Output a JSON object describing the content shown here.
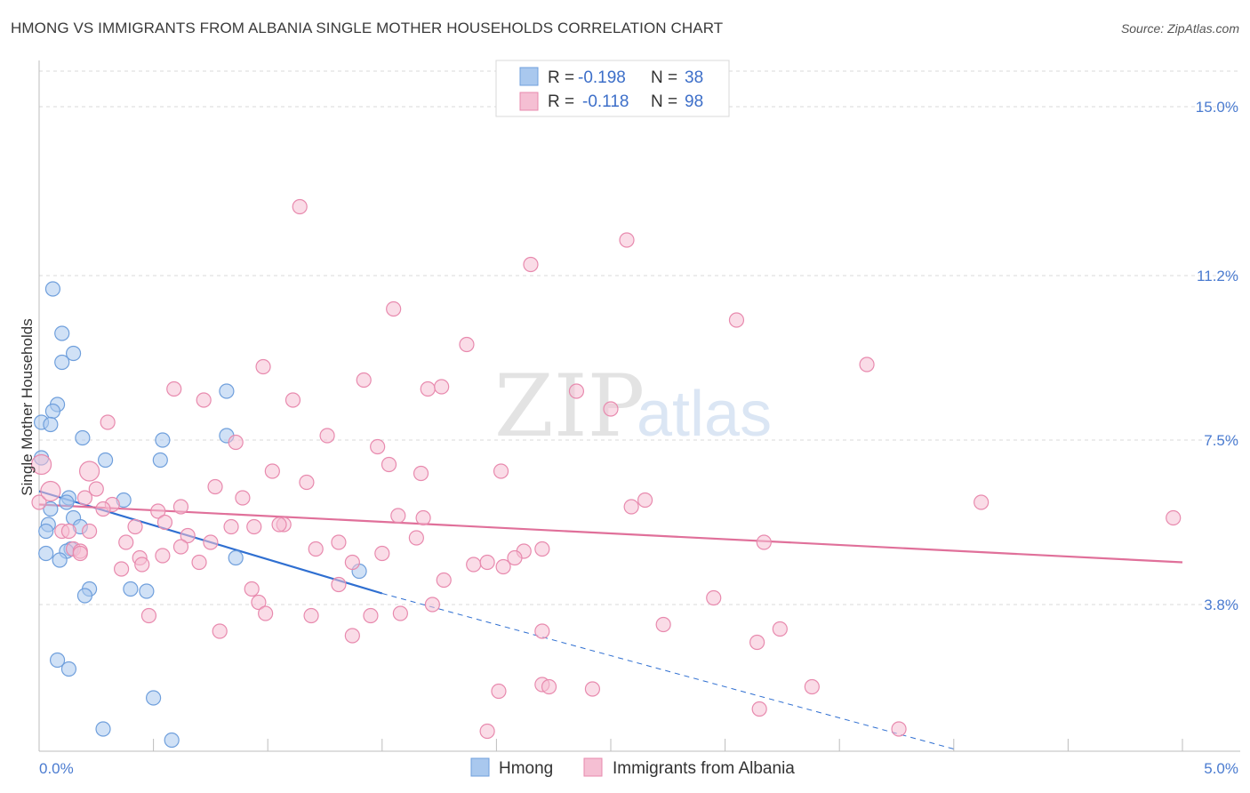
{
  "title": "HMONG VS IMMIGRANTS FROM ALBANIA SINGLE MOTHER HOUSEHOLDS CORRELATION CHART",
  "source": "Source: ZipAtlas.com",
  "watermark": {
    "part1": "ZIP",
    "part2": "atlas"
  },
  "legend": {
    "rows": [
      {
        "r_label": "R =",
        "r_value": "-0.198",
        "n_label": "N =",
        "n_value": "38"
      },
      {
        "r_label": "R =",
        "r_value": "-0.118",
        "n_label": "N =",
        "n_value": "98"
      }
    ]
  },
  "chart_data": {
    "type": "scatter",
    "title": "HMONG VS IMMIGRANTS FROM ALBANIA SINGLE MOTHER HOUSEHOLDS CORRELATION CHART",
    "xlabel": "",
    "ylabel": "Single Mother Households",
    "xlim": [
      0,
      5
    ],
    "ylim": [
      0.5,
      15.8
    ],
    "x_tick_labels": [
      "0.0%",
      "5.0%"
    ],
    "y_ticks": [
      3.8,
      7.5,
      11.2,
      15.0
    ],
    "y_tick_labels": [
      "3.8%",
      "7.5%",
      "11.2%",
      "15.0%"
    ],
    "grid": true,
    "legend_position": "top-center",
    "series": [
      {
        "name": "Hmong",
        "color": "#a9c8ee",
        "stroke": "#6f9fdc",
        "line_color": "#2f6fd1",
        "trend": {
          "x0": 0.0,
          "y0": 6.35,
          "x1": 1.5,
          "y1": 4.05,
          "dash_to_x": 4.0,
          "dash_to_y": 0.55
        },
        "points": [
          [
            0.06,
            10.9
          ],
          [
            0.1,
            9.9
          ],
          [
            0.15,
            9.45
          ],
          [
            0.1,
            9.25
          ],
          [
            0.08,
            8.3
          ],
          [
            0.06,
            8.15
          ],
          [
            0.01,
            7.9
          ],
          [
            0.05,
            7.85
          ],
          [
            0.19,
            7.55
          ],
          [
            0.29,
            7.05
          ],
          [
            0.01,
            7.1
          ],
          [
            0.13,
            6.2
          ],
          [
            0.37,
            6.15
          ],
          [
            0.12,
            6.1
          ],
          [
            0.05,
            5.95
          ],
          [
            0.15,
            5.75
          ],
          [
            0.04,
            5.6
          ],
          [
            0.18,
            5.55
          ],
          [
            0.03,
            5.45
          ],
          [
            0.14,
            5.05
          ],
          [
            0.12,
            5.0
          ],
          [
            0.03,
            4.95
          ],
          [
            0.09,
            4.8
          ],
          [
            0.22,
            4.15
          ],
          [
            0.2,
            4.0
          ],
          [
            0.4,
            4.15
          ],
          [
            0.47,
            4.1
          ],
          [
            0.08,
            2.55
          ],
          [
            0.13,
            2.35
          ],
          [
            0.5,
            1.7
          ],
          [
            0.28,
            1.0
          ],
          [
            0.58,
            0.75
          ],
          [
            0.86,
            4.85
          ],
          [
            1.4,
            4.55
          ],
          [
            0.82,
            8.6
          ],
          [
            0.82,
            7.6
          ],
          [
            0.54,
            7.5
          ],
          [
            0.53,
            7.05
          ]
        ],
        "big_points": []
      },
      {
        "name": "Immigrants from Albania",
        "color": "#f5bfd3",
        "stroke": "#e88aae",
        "line_color": "#e0709a",
        "trend": {
          "x0": 0.0,
          "y0": 6.05,
          "x1": 5.0,
          "y1": 4.75
        },
        "points": [
          [
            1.14,
            12.75
          ],
          [
            2.57,
            12.0
          ],
          [
            2.15,
            11.45
          ],
          [
            1.55,
            10.45
          ],
          [
            3.05,
            10.2
          ],
          [
            1.87,
            9.65
          ],
          [
            3.62,
            9.2
          ],
          [
            0.98,
            9.15
          ],
          [
            1.42,
            8.85
          ],
          [
            0.59,
            8.65
          ],
          [
            1.7,
            8.65
          ],
          [
            1.76,
            8.7
          ],
          [
            2.35,
            8.6
          ],
          [
            0.72,
            8.4
          ],
          [
            1.11,
            8.4
          ],
          [
            2.5,
            8.2
          ],
          [
            0.3,
            7.9
          ],
          [
            1.26,
            7.6
          ],
          [
            0.86,
            7.45
          ],
          [
            1.48,
            7.35
          ],
          [
            1.53,
            6.95
          ],
          [
            2.02,
            6.8
          ],
          [
            1.02,
            6.8
          ],
          [
            1.67,
            6.75
          ],
          [
            1.17,
            6.55
          ],
          [
            0.77,
            6.45
          ],
          [
            0.25,
            6.4
          ],
          [
            0.89,
            6.2
          ],
          [
            0.2,
            6.2
          ],
          [
            2.65,
            6.15
          ],
          [
            4.12,
            6.1
          ],
          [
            0.32,
            6.05
          ],
          [
            0.62,
            6.0
          ],
          [
            0.28,
            5.95
          ],
          [
            2.59,
            6.0
          ],
          [
            0.52,
            5.9
          ],
          [
            1.57,
            5.8
          ],
          [
            1.68,
            5.75
          ],
          [
            0.55,
            5.65
          ],
          [
            0.84,
            5.55
          ],
          [
            1.07,
            5.6
          ],
          [
            1.05,
            5.6
          ],
          [
            0.94,
            5.55
          ],
          [
            0.42,
            5.55
          ],
          [
            0.22,
            5.45
          ],
          [
            0.1,
            5.45
          ],
          [
            0.13,
            5.45
          ],
          [
            0.65,
            5.35
          ],
          [
            1.65,
            5.3
          ],
          [
            0.38,
            5.2
          ],
          [
            0.75,
            5.2
          ],
          [
            1.31,
            5.2
          ],
          [
            2.2,
            5.05
          ],
          [
            1.21,
            5.05
          ],
          [
            2.12,
            5.0
          ],
          [
            1.5,
            4.95
          ],
          [
            0.62,
            5.1
          ],
          [
            3.17,
            5.2
          ],
          [
            0.15,
            5.05
          ],
          [
            0.18,
            5.0
          ],
          [
            0.54,
            4.9
          ],
          [
            0.44,
            4.85
          ],
          [
            2.08,
            4.85
          ],
          [
            0.7,
            4.75
          ],
          [
            1.37,
            4.75
          ],
          [
            1.9,
            4.7
          ],
          [
            1.96,
            4.75
          ],
          [
            0.45,
            4.7
          ],
          [
            0.36,
            4.6
          ],
          [
            2.03,
            4.65
          ],
          [
            1.77,
            4.35
          ],
          [
            0.93,
            4.15
          ],
          [
            1.31,
            4.25
          ],
          [
            2.95,
            3.95
          ],
          [
            0.96,
            3.85
          ],
          [
            0.99,
            3.6
          ],
          [
            1.58,
            3.6
          ],
          [
            0.48,
            3.55
          ],
          [
            1.19,
            3.55
          ],
          [
            1.45,
            3.55
          ],
          [
            1.72,
            3.8
          ],
          [
            2.73,
            3.35
          ],
          [
            3.24,
            3.25
          ],
          [
            0.79,
            3.2
          ],
          [
            2.2,
            3.2
          ],
          [
            1.37,
            3.1
          ],
          [
            3.14,
            2.95
          ],
          [
            2.2,
            2.0
          ],
          [
            2.23,
            1.95
          ],
          [
            3.38,
            1.95
          ],
          [
            2.42,
            1.9
          ],
          [
            2.01,
            1.85
          ],
          [
            3.15,
            1.45
          ],
          [
            1.96,
            0.95
          ],
          [
            3.76,
            1.0
          ],
          [
            4.96,
            5.75
          ],
          [
            0.0,
            6.1
          ],
          [
            0.18,
            4.95
          ]
        ],
        "big_points": [
          [
            0.01,
            6.95
          ],
          [
            0.22,
            6.8
          ],
          [
            0.05,
            6.35
          ]
        ]
      }
    ]
  }
}
